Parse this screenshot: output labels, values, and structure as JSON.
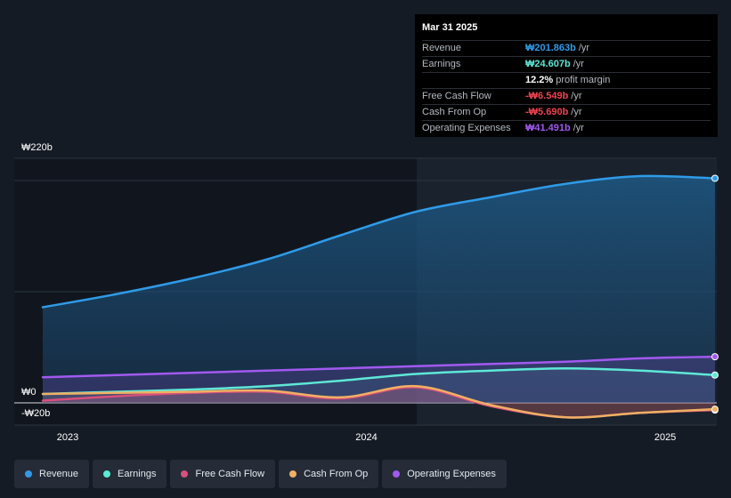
{
  "tooltip": {
    "date": "Mar 31 2025",
    "rows": [
      {
        "label": "Revenue",
        "value": "₩201.863b",
        "unit": "/yr",
        "color": "#2f9be8"
      },
      {
        "label": "Earnings",
        "value": "₩24.607b",
        "unit": "/yr",
        "color": "#5ee8d6"
      },
      {
        "label": "",
        "value": "12.2%",
        "unit": "profit margin",
        "color": "#ffffff"
      },
      {
        "label": "Free Cash Flow",
        "value": "-₩6.549b",
        "unit": "/yr",
        "color": "#f0444f"
      },
      {
        "label": "Cash From Op",
        "value": "-₩5.690b",
        "unit": "/yr",
        "color": "#f0444f"
      },
      {
        "label": "Operating Expenses",
        "value": "₩41.491b",
        "unit": "/yr",
        "color": "#a259f0"
      }
    ]
  },
  "legend": [
    {
      "label": "Revenue",
      "color": "#2f9be8"
    },
    {
      "label": "Earnings",
      "color": "#5ee8d6"
    },
    {
      "label": "Free Cash Flow",
      "color": "#d94f7c"
    },
    {
      "label": "Cash From Op",
      "color": "#f0b064"
    },
    {
      "label": "Operating Expenses",
      "color": "#a259f0"
    }
  ],
  "chart_data": {
    "type": "area",
    "y_tick_labels": [
      "₩220b",
      "₩0",
      "-₩20b"
    ],
    "ylim": [
      -20,
      220
    ],
    "x_tick_labels": [
      "2023",
      "2024",
      "2025"
    ],
    "x": [
      "2022-12",
      "2023-03",
      "2023-06",
      "2023-09",
      "2023-12",
      "2024-03",
      "2024-06",
      "2024-09",
      "2024-12",
      "2025-03"
    ],
    "series": [
      {
        "name": "Revenue",
        "color": "#2f9be8",
        "values": [
          86,
          98,
          112,
          129,
          151,
          172,
          185,
          197,
          204,
          202
        ]
      },
      {
        "name": "Earnings",
        "color": "#5ee8d6",
        "values": [
          8,
          10,
          12,
          15,
          20,
          26,
          29,
          31,
          29,
          25
        ]
      },
      {
        "name": "Free Cash Flow",
        "color": "#d94f7c",
        "values": [
          2,
          6,
          9,
          10,
          4,
          14,
          -3,
          -13,
          -9,
          -6.5
        ]
      },
      {
        "name": "Cash From Op",
        "color": "#f0b064",
        "values": [
          8,
          9,
          10,
          11,
          5,
          15,
          -2,
          -13,
          -9,
          -5.7
        ]
      },
      {
        "name": "Operating Expenses",
        "color": "#a259f0",
        "values": [
          23,
          25,
          27,
          29,
          31,
          33,
          35,
          37,
          40,
          41.5
        ]
      }
    ],
    "highlight_start": "2024-03",
    "grid": true,
    "legend_position": "bottom-left"
  }
}
